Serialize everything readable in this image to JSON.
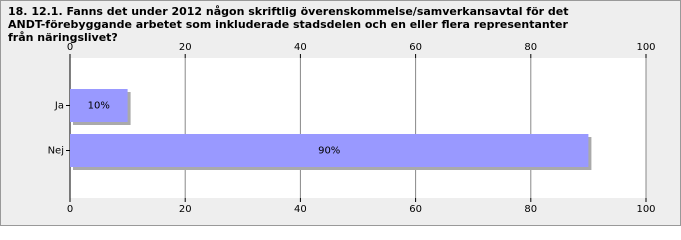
{
  "chart_data": {
    "type": "bar",
    "orientation": "horizontal",
    "title": "18. 12.1. Fanns det under 2012 någon skriftlig överenskommelse/samverkansavtal för det ANDT-förebyggande arbetet som inkluderade stadsdelen och en eller flera representanter från näringslivet?",
    "categories": [
      "Ja",
      "Nej"
    ],
    "values": [
      10,
      90
    ],
    "value_labels": [
      "10%",
      "90%"
    ],
    "color": "#9999ff",
    "xlim": [
      0,
      100
    ],
    "xticks": [
      0,
      20,
      40,
      60,
      80,
      100
    ],
    "grid": true
  }
}
